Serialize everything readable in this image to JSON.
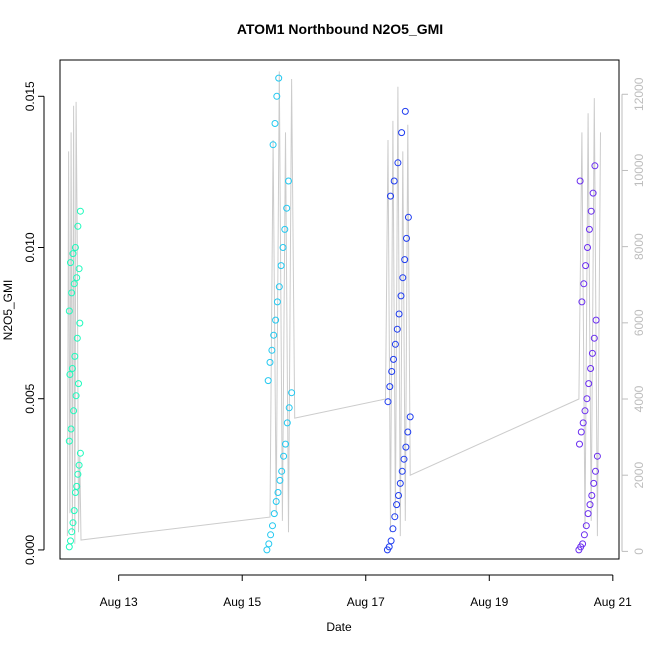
{
  "chart_data": {
    "type": "scatter",
    "title": "ATOM1 Northbound N2O5_GMI",
    "xlabel": "Date",
    "ylabel": "N2O5_GMI",
    "y2label": "",
    "xlim": [
      12.05,
      21.1
    ],
    "ylim": [
      -0.0003,
      0.0162
    ],
    "y2lim": [
      -200,
      12900
    ],
    "x_ticks": [
      13,
      15,
      17,
      19,
      21
    ],
    "x_tick_labels": [
      "Aug 13",
      "Aug 15",
      "Aug 17",
      "Aug 19",
      "Aug 21"
    ],
    "y_ticks": [
      0.0,
      0.005,
      0.01,
      0.015
    ],
    "y_tick_labels": [
      "0.000",
      "0.005",
      "0.010",
      "0.015"
    ],
    "y2_ticks": [
      0,
      2000,
      4000,
      6000,
      8000,
      10000,
      12000
    ],
    "y2_tick_labels": [
      "0",
      "2000",
      "4000",
      "6000",
      "8000",
      "10000",
      "12000"
    ],
    "grid": false,
    "series": [
      {
        "color": "#1dfabc",
        "x": [
          12.2,
          12.22,
          12.24,
          12.26,
          12.28,
          12.3,
          12.32,
          12.34,
          12.36,
          12.38,
          12.2,
          12.23,
          12.27,
          12.31,
          12.35,
          12.21,
          12.25,
          12.29,
          12.33,
          12.37,
          12.2,
          12.24,
          12.28,
          12.32,
          12.36,
          12.22,
          12.26,
          12.3,
          12.34,
          12.38
        ],
        "y": [
          0.0001,
          0.0003,
          0.0006,
          0.0009,
          0.0013,
          0.0019,
          0.0021,
          0.0025,
          0.0028,
          0.0032,
          0.0036,
          0.004,
          0.0046,
          0.0051,
          0.0055,
          0.0058,
          0.006,
          0.0064,
          0.007,
          0.0075,
          0.0079,
          0.0085,
          0.0088,
          0.009,
          0.0093,
          0.0095,
          0.0098,
          0.01,
          0.0107,
          0.0112
        ]
      },
      {
        "color": "#22c8f0",
        "x": [
          15.4,
          15.43,
          15.46,
          15.49,
          15.52,
          15.55,
          15.58,
          15.61,
          15.64,
          15.67,
          15.7,
          15.73,
          15.76,
          15.8,
          15.42,
          15.45,
          15.48,
          15.51,
          15.54,
          15.57,
          15.6,
          15.63,
          15.66,
          15.69,
          15.72,
          15.75,
          15.5,
          15.53,
          15.56,
          15.59
        ],
        "y": [
          0.0,
          0.0002,
          0.0005,
          0.0008,
          0.0012,
          0.0016,
          0.0019,
          0.0023,
          0.0026,
          0.0031,
          0.0035,
          0.0042,
          0.0047,
          0.0052,
          0.0056,
          0.0062,
          0.0066,
          0.0071,
          0.0076,
          0.0082,
          0.0087,
          0.0094,
          0.01,
          0.0106,
          0.0113,
          0.0122,
          0.0134,
          0.0141,
          0.015,
          0.0156
        ]
      },
      {
        "color": "#1e3cf0",
        "x": [
          17.35,
          17.38,
          17.41,
          17.44,
          17.47,
          17.5,
          17.53,
          17.56,
          17.59,
          17.62,
          17.65,
          17.68,
          17.72,
          17.36,
          17.39,
          17.42,
          17.45,
          17.48,
          17.51,
          17.54,
          17.57,
          17.6,
          17.63,
          17.66,
          17.69,
          17.4,
          17.46,
          17.52,
          17.58,
          17.64
        ],
        "y": [
          0.0,
          0.0001,
          0.0003,
          0.0007,
          0.0011,
          0.0015,
          0.0018,
          0.0022,
          0.0026,
          0.003,
          0.0034,
          0.0039,
          0.0044,
          0.0049,
          0.0054,
          0.0059,
          0.0063,
          0.0068,
          0.0073,
          0.0078,
          0.0084,
          0.009,
          0.0096,
          0.0103,
          0.011,
          0.0117,
          0.0122,
          0.0128,
          0.0138,
          0.0145
        ]
      },
      {
        "color": "#6a2ef0",
        "x": [
          20.45,
          20.48,
          20.51,
          20.54,
          20.57,
          20.6,
          20.63,
          20.66,
          20.69,
          20.72,
          20.75,
          20.46,
          20.49,
          20.52,
          20.55,
          20.58,
          20.61,
          20.64,
          20.67,
          20.7,
          20.73,
          20.5,
          20.53,
          20.56,
          20.59,
          20.62,
          20.65,
          20.68,
          20.47,
          20.71
        ],
        "y": [
          0.0,
          0.0001,
          0.0002,
          0.0005,
          0.0008,
          0.0012,
          0.0015,
          0.0018,
          0.0022,
          0.0026,
          0.0031,
          0.0035,
          0.0039,
          0.0042,
          0.0046,
          0.005,
          0.0055,
          0.006,
          0.0065,
          0.007,
          0.0076,
          0.0082,
          0.0088,
          0.0094,
          0.01,
          0.0106,
          0.0112,
          0.0118,
          0.0122,
          0.0127
        ]
      }
    ],
    "secondary": {
      "color": "#cccccc",
      "x": [
        12.17,
        12.19,
        12.21,
        12.23,
        12.25,
        12.27,
        12.29,
        12.31,
        12.33,
        12.35,
        12.37,
        12.39,
        15.45,
        15.5,
        15.55,
        15.6,
        15.65,
        15.7,
        15.75,
        15.8,
        15.85,
        17.32,
        17.36,
        17.4,
        17.44,
        17.48,
        17.52,
        17.56,
        17.6,
        17.64,
        17.68,
        17.72,
        20.45,
        20.5,
        20.55,
        20.6,
        20.65,
        20.7,
        20.75,
        20.8
      ],
      "y": [
        400,
        10500,
        1000,
        11000,
        500,
        11700,
        200,
        11800,
        8000,
        500,
        2500,
        300,
        900,
        10800,
        1000,
        12600,
        800,
        11000,
        500,
        12400,
        3500,
        4000,
        10800,
        500,
        11300,
        900,
        12200,
        400,
        10500,
        800,
        11200,
        2000,
        4000,
        11000,
        600,
        11500,
        800,
        11900,
        400,
        11000
      ]
    }
  }
}
